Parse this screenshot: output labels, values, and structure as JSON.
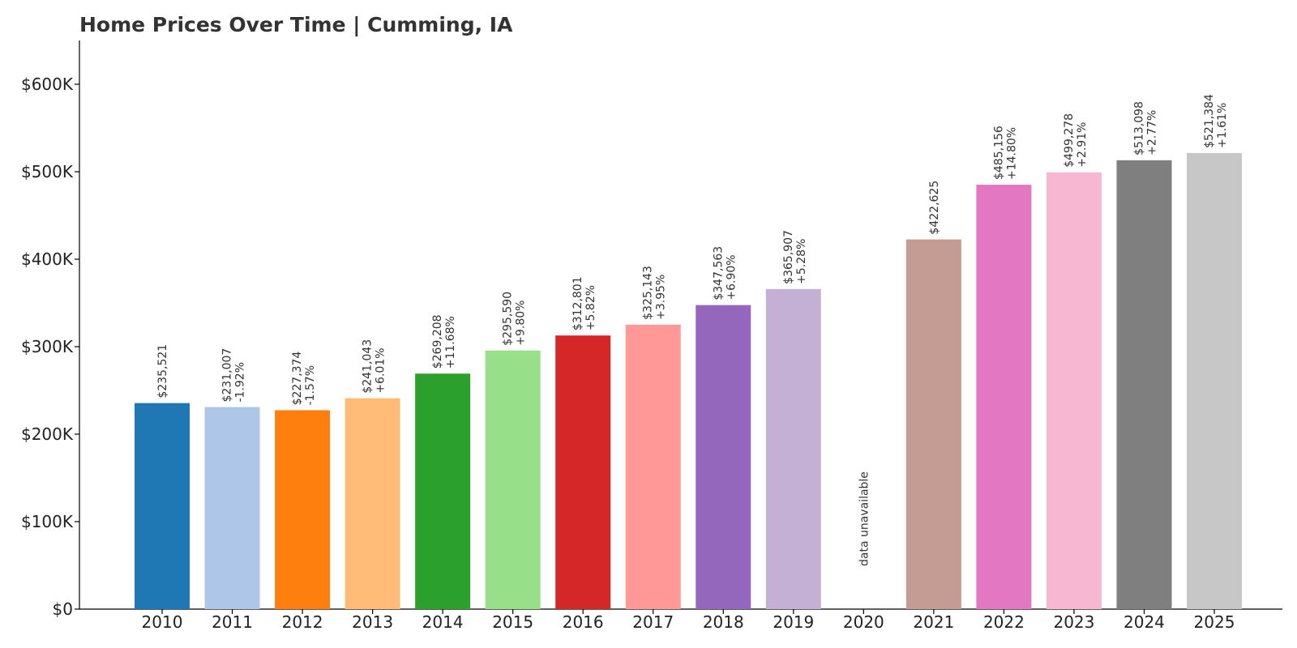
{
  "chart_data": {
    "type": "bar",
    "title": "Home Prices Over Time | Cumming, IA",
    "xlabel": "",
    "ylabel": "",
    "ylim": [
      0,
      650000
    ],
    "yticks": [
      0,
      100000,
      200000,
      300000,
      400000,
      500000,
      600000
    ],
    "ytick_labels": [
      "$0",
      "$100K",
      "$200K",
      "$300K",
      "$400K",
      "$500K",
      "$600K"
    ],
    "grid": false,
    "categories": [
      "2010",
      "2011",
      "2012",
      "2013",
      "2014",
      "2015",
      "2016",
      "2017",
      "2018",
      "2019",
      "2020",
      "2021",
      "2022",
      "2023",
      "2024",
      "2025"
    ],
    "values": [
      235521,
      231007,
      227374,
      241043,
      269208,
      295590,
      312801,
      325143,
      347563,
      365907,
      null,
      422625,
      485156,
      499278,
      513098,
      521384
    ],
    "value_labels": [
      "$235,521",
      "$231,007",
      "$227,374",
      "$241,043",
      "$269,208",
      "$295,590",
      "$312,801",
      "$325,143",
      "$347,563",
      "$365,907",
      "",
      "$422,625",
      "$485,156",
      "$499,278",
      "$513,098",
      "$521,384"
    ],
    "change_labels": [
      "",
      "-1.92%",
      "-1.57%",
      "+6.01%",
      "+11.68%",
      "+9.80%",
      "+5.82%",
      "+3.95%",
      "+6.90%",
      "+5.28%",
      "",
      "",
      "+14.80%",
      "+2.91%",
      "+2.77%",
      "+1.61%"
    ],
    "missing_label": "data unavailable",
    "colors": [
      "#1f77b4",
      "#aec7e8",
      "#ff7f0e",
      "#ffbb78",
      "#2ca02c",
      "#98df8a",
      "#d62728",
      "#ff9896",
      "#9467bd",
      "#c5b0d5",
      "#8c564b",
      "#c49c94",
      "#e377c2",
      "#f7b6d2",
      "#7f7f7f",
      "#c7c7c7"
    ]
  }
}
